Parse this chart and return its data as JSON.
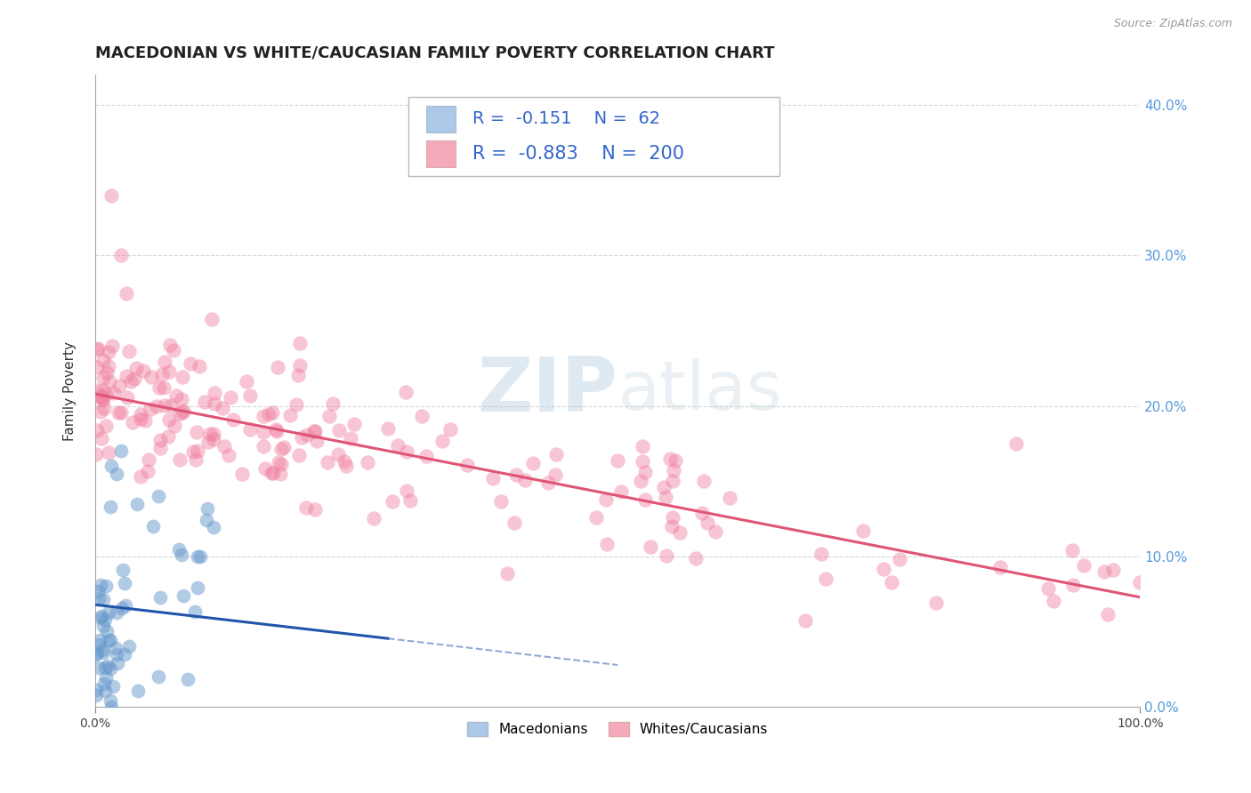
{
  "title": "MACEDONIAN VS WHITE/CAUCASIAN FAMILY POVERTY CORRELATION CHART",
  "source": "Source: ZipAtlas.com",
  "ylabel": "Family Poverty",
  "xlim": [
    0,
    1.0
  ],
  "ylim": [
    0,
    0.42
  ],
  "ytick_vals": [
    0.0,
    0.1,
    0.2,
    0.3,
    0.4
  ],
  "ytick_labels": [
    "0.0%",
    "10.0%",
    "20.0%",
    "30.0%",
    "40.0%"
  ],
  "legend_entries": [
    {
      "label": "Macedonians",
      "patch_color": "#adc8e8",
      "R": -0.151,
      "N": 62
    },
    {
      "label": "Whites/Caucasians",
      "patch_color": "#f4aabb",
      "R": -0.883,
      "N": 200
    }
  ],
  "blue_scatter_color": "#6699cc",
  "pink_scatter_color": "#f080a0",
  "blue_line_color": "#2255aa",
  "pink_line_color": "#e05575",
  "background_color": "#ffffff",
  "grid_color": "#cccccc",
  "watermark_zip": "ZIP",
  "watermark_atlas": "atlas",
  "title_fontsize": 13,
  "axis_label_fontsize": 11,
  "tick_fontsize": 10,
  "legend_fontsize": 14,
  "right_tick_color": "#5599dd",
  "source_color": "#999999"
}
